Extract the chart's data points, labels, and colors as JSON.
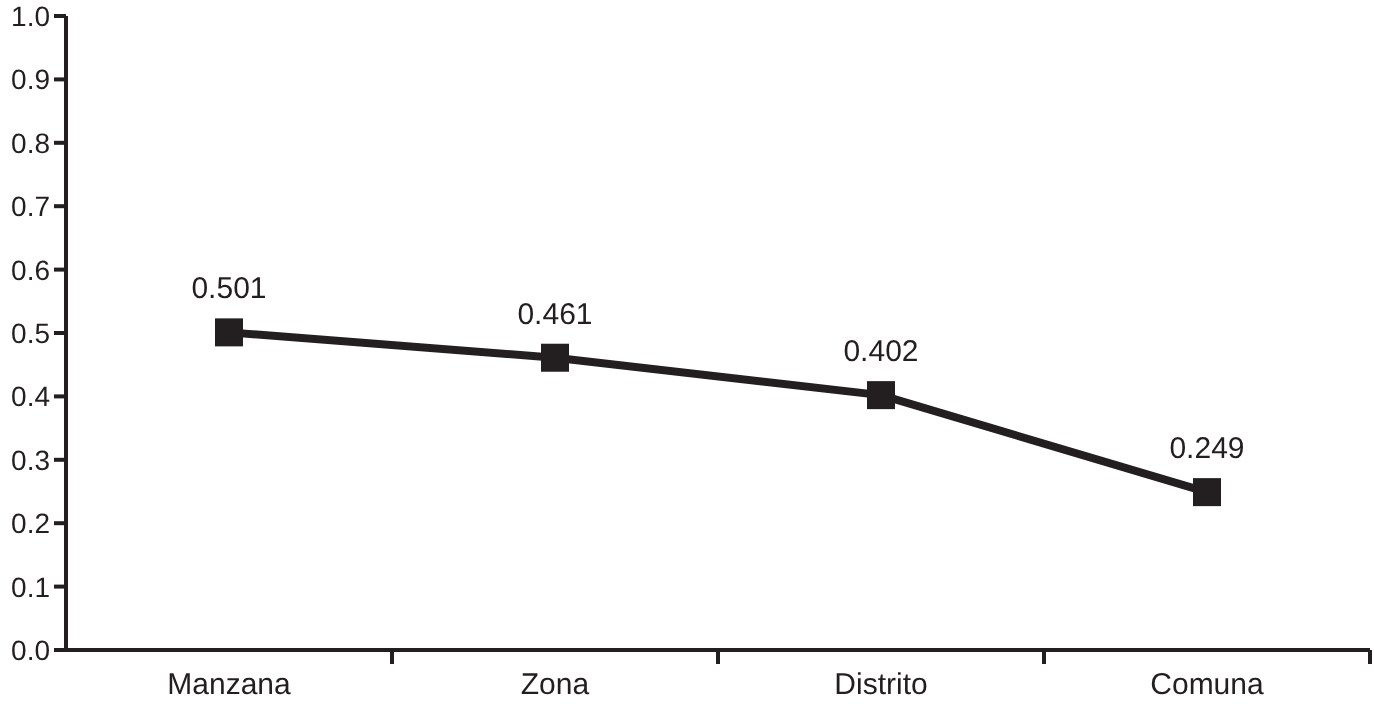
{
  "chart_data": {
    "type": "line",
    "categories": [
      "Manzana",
      "Zona",
      "Distrito",
      "Comuna"
    ],
    "series": [
      {
        "color": "#231f20",
        "values": [
          0.501,
          0.461,
          0.402,
          0.249
        ]
      }
    ],
    "ylim": [
      0,
      1
    ],
    "yticks": [
      {
        "value": 0,
        "label": "0.0"
      },
      {
        "value": 0.1,
        "label": "0.1"
      },
      {
        "value": 0.2,
        "label": "0.2"
      },
      {
        "value": 0.3,
        "label": "0.3"
      },
      {
        "value": 0.4,
        "label": "0.4"
      },
      {
        "value": 0.5,
        "label": "0.5"
      },
      {
        "value": 0.6,
        "label": "0.6"
      },
      {
        "value": 0.7,
        "label": "0.7"
      },
      {
        "value": 0.8,
        "label": "0.8"
      },
      {
        "value": 0.9,
        "label": "0.9"
      },
      {
        "value": 1,
        "label": "1.0"
      }
    ],
    "data_labels": true,
    "marker": "square",
    "line_style": "solid",
    "grid": false,
    "legend": false
  }
}
